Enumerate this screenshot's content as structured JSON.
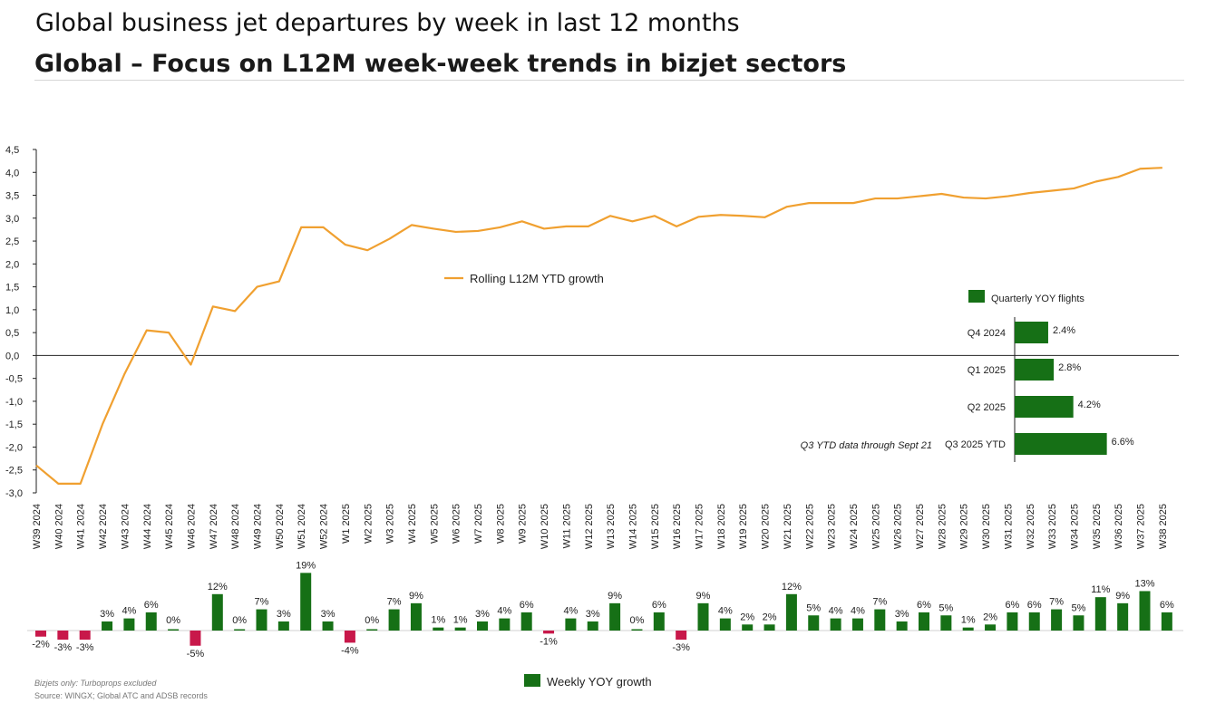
{
  "header": {
    "title": "Global business jet departures by week in last 12 months",
    "slide_title": "Global – Focus on L12M week-week trends in bizjet sectors"
  },
  "notes": {
    "note1": "Bizjets only: Turboprops excluded",
    "note2": "Source: WINGX; Global ATC and ADSB records"
  },
  "colors": {
    "line": "#F0A030",
    "positive": "#167016",
    "negative": "#C8184A",
    "axis": "#222222",
    "text": "#222222"
  },
  "chart_data": [
    {
      "type": "line",
      "ylim": [
        -3.0,
        4.5
      ],
      "yticks": [
        "4,5",
        "4,0",
        "3,5",
        "3,0",
        "2,5",
        "2,0",
        "1,5",
        "1,0",
        "0,5",
        "0,0",
        "-0,5",
        "-1,0",
        "-1,5",
        "-2,0",
        "-2,5",
        "-3,0"
      ],
      "categories": [
        "W39 2024",
        "W40 2024",
        "W41 2024",
        "W42 2024",
        "W43 2024",
        "W44 2024",
        "W45 2024",
        "W46 2024",
        "W47 2024",
        "W48 2024",
        "W49 2024",
        "W50 2024",
        "W51 2024",
        "W52 2024",
        "W1 2025",
        "W2 2025",
        "W3 2025",
        "W4 2025",
        "W5 2025",
        "W6 2025",
        "W7 2025",
        "W8 2025",
        "W9 2025",
        "W10 2025",
        "W11 2025",
        "W12 2025",
        "W13 2025",
        "W14 2025",
        "W15 2025",
        "W16 2025",
        "W17 2025",
        "W18 2025",
        "W19 2025",
        "W20 2025",
        "W21 2025",
        "W22 2025",
        "W23 2025",
        "W24 2025",
        "W25 2025",
        "W26 2025",
        "W27 2025",
        "W28 2025",
        "W29 2025",
        "W30 2025",
        "W31 2025",
        "W32 2025",
        "W33 2025",
        "W34 2025",
        "W35 2025",
        "W36 2025",
        "W37 2025",
        "W38 2025"
      ],
      "legend": "Rolling L12M YTD growth",
      "legend_position": "center",
      "series": [
        {
          "name": "Rolling L12M YTD growth",
          "values": [
            -2.4,
            -2.8,
            -2.8,
            -1.5,
            -0.4,
            0.55,
            0.5,
            -0.2,
            1.07,
            0.97,
            1.5,
            1.62,
            2.8,
            2.8,
            2.42,
            2.3,
            2.55,
            2.85,
            2.77,
            2.7,
            2.72,
            2.8,
            2.93,
            2.77,
            2.82,
            2.82,
            3.05,
            2.93,
            3.05,
            2.82,
            3.03,
            3.07,
            3.05,
            3.02,
            3.25,
            3.33,
            3.33,
            3.33,
            3.43,
            3.43,
            3.48,
            3.53,
            3.45,
            3.43,
            3.48,
            3.55,
            3.6,
            3.65,
            3.8,
            3.9,
            4.08,
            4.1
          ]
        }
      ]
    },
    {
      "type": "bar",
      "orientation": "horizontal",
      "legend": "Quarterly YOY flights",
      "categories": [
        "Q4 2024",
        "Q1 2025",
        "Q2 2025",
        "Q3 2025 YTD"
      ],
      "values": [
        2.4,
        2.8,
        4.2,
        6.6
      ],
      "value_labels": [
        "2.4%",
        "2.8%",
        "4.2%",
        "6.6%"
      ],
      "annotation": "Q3 YTD data through Sept 21"
    },
    {
      "type": "bar",
      "legend": "Weekly YOY growth",
      "categories_ref": "same as line chart weeks (W39 2024 – W38 2025)",
      "values": [
        -2,
        -3,
        -3,
        3,
        4,
        6,
        0,
        -5,
        12,
        0,
        7,
        3,
        19,
        3,
        -4,
        0,
        7,
        9,
        1,
        1,
        3,
        4,
        6,
        -1,
        4,
        3,
        9,
        0,
        6,
        -3,
        9,
        4,
        2,
        2,
        12,
        5,
        4,
        4,
        7,
        3,
        6,
        5,
        1,
        2,
        6,
        6,
        7,
        5,
        11,
        9,
        13,
        6
      ],
      "value_labels": [
        "-2%",
        "-3%",
        "-3%",
        "3%",
        "4%",
        "6%",
        "0%",
        "-5%",
        "12%",
        "0%",
        "7%",
        "3%",
        "19%",
        "3%",
        "-4%",
        "0%",
        "7%",
        "9%",
        "1%",
        "1%",
        "3%",
        "4%",
        "6%",
        "-1%",
        "4%",
        "3%",
        "9%",
        "0%",
        "6%",
        "-3%",
        "9%",
        "4%",
        "2%",
        "2%",
        "12%",
        "5%",
        "4%",
        "4%",
        "7%",
        "3%",
        "6%",
        "5%",
        "1%",
        "2%",
        "6%",
        "6%",
        "7%",
        "5%",
        "11%",
        "9%",
        "13%",
        "6%"
      ]
    }
  ]
}
